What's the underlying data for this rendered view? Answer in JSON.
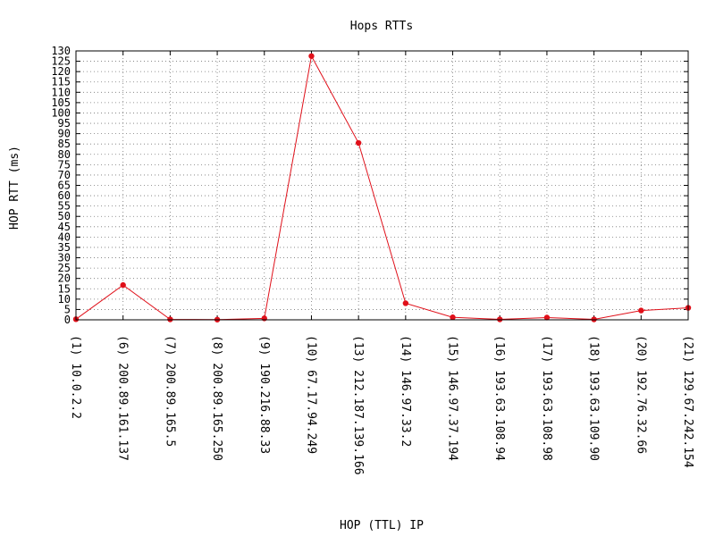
{
  "chart_data": {
    "type": "line",
    "title": "Hops RTTs",
    "xlabel": "HOP (TTL) IP",
    "ylabel": "HOP RTT (ms)",
    "ylim": [
      0,
      130
    ],
    "ytick_step": 5,
    "grid": true,
    "categories": [
      "(1)  10.0.2.2",
      "(6)  200.89.161.137",
      "(7)  200.89.165.5",
      "(8)  200.89.165.250",
      "(9)  190.216.88.33",
      "(10)  67.17.94.249",
      "(13)  212.187.139.166",
      "(14)  146.97.33.2",
      "(15)  146.97.37.194",
      "(16)  193.63.108.94",
      "(17)  193.63.108.98",
      "(18)  193.63.109.90",
      "(20)  192.76.32.66",
      "(21)  129.67.242.154"
    ],
    "series": [
      {
        "values": [
          0.3,
          16.8,
          0.2,
          0.1,
          0.7,
          127.5,
          85.5,
          8.0,
          1.2,
          0.2,
          1.1,
          0.2,
          4.5,
          5.8
        ],
        "color": "#e0101a"
      }
    ]
  }
}
